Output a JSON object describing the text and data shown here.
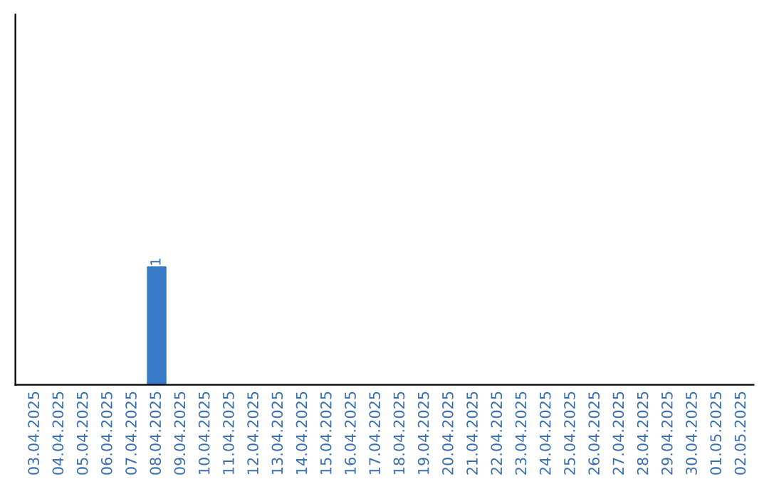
{
  "chart_data": {
    "type": "bar",
    "color": "#3a7bc8",
    "categories": [
      "03.04.2025",
      "04.04.2025",
      "05.04.2025",
      "06.04.2025",
      "07.04.2025",
      "08.04.2025",
      "09.04.2025",
      "10.04.2025",
      "11.04.2025",
      "12.04.2025",
      "13.04.2025",
      "14.04.2025",
      "15.04.2025",
      "16.04.2025",
      "17.04.2025",
      "18.04.2025",
      "19.04.2025",
      "20.04.2025",
      "21.04.2025",
      "22.04.2025",
      "23.04.2025",
      "24.04.2025",
      "25.04.2025",
      "26.04.2025",
      "27.04.2025",
      "28.04.2025",
      "29.04.2025",
      "30.04.2025",
      "01.05.2025",
      "02.05.2025"
    ],
    "values": [
      0,
      0,
      0,
      0,
      0,
      1,
      0,
      0,
      0,
      0,
      0,
      0,
      0,
      0,
      0,
      0,
      0,
      0,
      0,
      0,
      0,
      0,
      0,
      0,
      0,
      0,
      0,
      0,
      0,
      0
    ],
    "value_labels": [
      null,
      null,
      null,
      null,
      null,
      "1",
      null,
      null,
      null,
      null,
      null,
      null,
      null,
      null,
      null,
      null,
      null,
      null,
      null,
      null,
      null,
      null,
      null,
      null,
      null,
      null,
      null,
      null,
      null,
      null
    ],
    "grid": false,
    "legend": false
  }
}
